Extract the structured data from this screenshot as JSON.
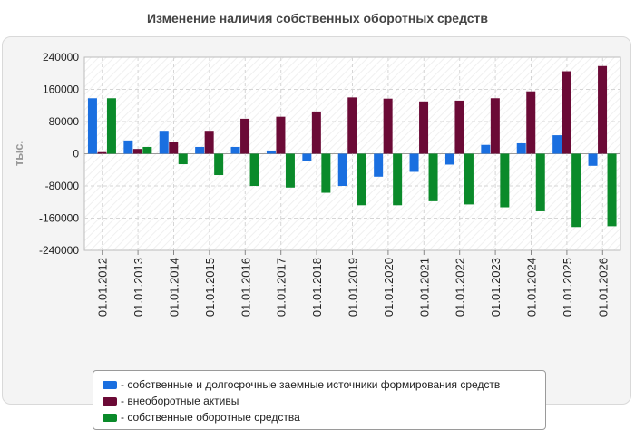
{
  "chart_data": {
    "type": "bar",
    "title": "Изменение наличия собственных оборотных средств",
    "ylabel": "тыс.",
    "xlabel": "",
    "ylim": [
      -240000,
      240000
    ],
    "yticks": [
      240000,
      160000,
      80000,
      0,
      -80000,
      -160000,
      -240000
    ],
    "grid": true,
    "legend_position": "bottom",
    "categories": [
      "01.01.2012",
      "01.01.2013",
      "01.01.2014",
      "01.01.2015",
      "01.01.2016",
      "01.01.2017",
      "01.01.2018",
      "01.01.2019",
      "01.01.2020",
      "01.01.2021",
      "01.01.2022",
      "01.01.2023",
      "01.01.2024",
      "01.01.2025",
      "01.01.2026"
    ],
    "series": [
      {
        "name": "собственные и долгосрочные заемные источники формирования средств",
        "color": "#1a6fe0",
        "values": [
          138000,
          33000,
          57000,
          17000,
          17000,
          8000,
          -17000,
          -80000,
          -57000,
          -45000,
          -27000,
          22000,
          26000,
          46000,
          -30000
        ]
      },
      {
        "name": "внеоборотные активы",
        "color": "#6b0a36",
        "values": [
          4000,
          12000,
          29000,
          57000,
          87000,
          92000,
          105000,
          140000,
          137000,
          130000,
          132000,
          138000,
          155000,
          205000,
          218000
        ]
      },
      {
        "name": "собственные оборотные средства",
        "color": "#0a8a2a",
        "values": [
          138000,
          17000,
          -26000,
          -53000,
          -80000,
          -84000,
          -97000,
          -128000,
          -128000,
          -118000,
          -126000,
          -133000,
          -143000,
          -182000,
          -180000
        ]
      }
    ]
  }
}
